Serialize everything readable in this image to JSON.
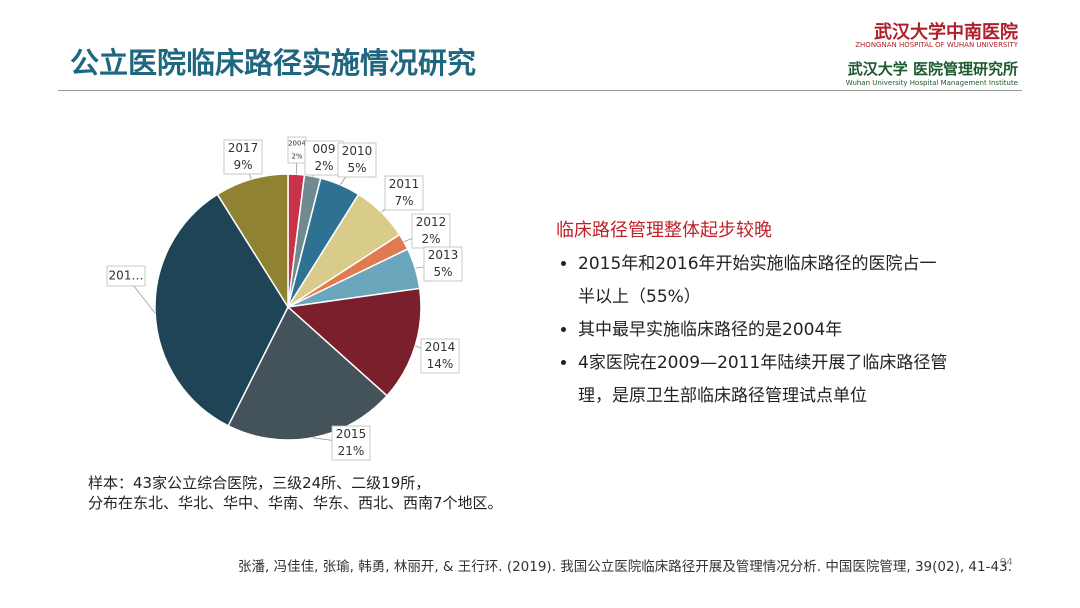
{
  "header": {
    "title": "公立医院临床路径实施情况研究",
    "logo1": "武汉大学中南医院",
    "logo1_en": "ZHONGNAN HOSPITAL OF WUHAN UNIVERSITY",
    "logo2": "武汉大学 医院管理研究所",
    "logo2_en": "Wuhan University Hospital Management Institute"
  },
  "chart_data": {
    "type": "pie",
    "categories": [
      "2004",
      "009",
      "2010",
      "2011",
      "2012",
      "2013",
      "2014",
      "2015",
      "201…",
      "2017"
    ],
    "values": [
      2,
      2,
      5,
      7,
      2,
      5,
      14,
      21,
      34,
      9
    ],
    "value_labels": [
      "2%",
      "2%",
      "5%",
      "7%",
      "2%",
      "5%",
      "14%",
      "21%",
      null,
      "9%"
    ],
    "colors": [
      "#c8334a",
      "#6f8a91",
      "#2e7191",
      "#d9cb8a",
      "#e07b4f",
      "#6aa7bd",
      "#7a1f2b",
      "#44525a",
      "#1e4455",
      "#8f8233"
    ]
  },
  "summary": {
    "heading": "临床路径管理整体起步较晚",
    "bullets": [
      "2015年和2016年开始实施临床路径的医院占一半以上（55%）",
      "其中最早实施临床路径的是2004年",
      "4家医院在2009—2011年陆续开展了临床路径管理，是原卫生部临床路径管理试点单位"
    ]
  },
  "note": [
    "样本：43家公立综合医院，三级24所、二级19所，",
    "分布在东北、华北、华中、华南、华东、西北、西南7个地区。"
  ],
  "citation": "张潘, 冯佳佳, 张瑜, 韩勇, 林丽开, & 王行环. (2019). 我国公立医院临床路径开展及管理情况分析. 中国医院管理, 39(02), 41-43.",
  "page_number": "94"
}
